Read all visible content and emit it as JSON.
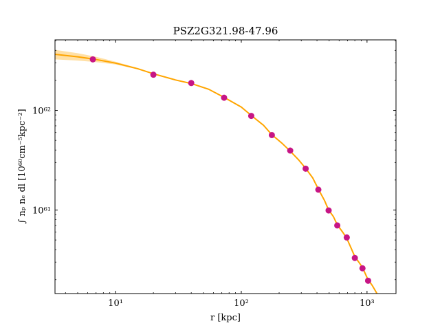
{
  "chart_data": {
    "type": "scatter",
    "title": "PSZ2G321.98-47.96",
    "xlabel": "r [kpc]",
    "ylabel": "∫ nₚ nₑ dl [10⁶⁰cm⁻⁵kpc⁻²]",
    "xscale": "log",
    "yscale": "log",
    "xlim": [
      3.3,
      1700
    ],
    "ylim": [
      1.45e+60,
      5.1e+62
    ],
    "x_ticks": [
      {
        "value": 10,
        "label": "10¹"
      },
      {
        "value": 100,
        "label": "10²"
      },
      {
        "value": 1000,
        "label": "10³"
      }
    ],
    "y_ticks": [
      {
        "value": 1e+61,
        "label": "10⁶¹"
      },
      {
        "value": 1e+62,
        "label": "10⁶²"
      }
    ],
    "grid": false,
    "legend": "none",
    "series": [
      {
        "kind": "points",
        "color": "#c71585",
        "x": [
          6.6,
          20,
          40,
          73,
          120,
          175,
          245,
          325,
          410,
          495,
          580,
          690,
          800,
          920,
          1020
        ],
        "y": [
          3.25e+62,
          2.28e+62,
          1.88e+62,
          1.34e+62,
          8.8e+61,
          5.65e+61,
          3.95e+61,
          2.6e+61,
          1.6e+61,
          9.9e+60,
          7e+60,
          5.3e+60,
          3.3e+60,
          2.6e+60,
          1.95e+60
        ]
      },
      {
        "kind": "model-line",
        "color": "#ffa500",
        "x": [
          3.3,
          5,
          7,
          10,
          15,
          20,
          30,
          40,
          55,
          73,
          100,
          120,
          150,
          175,
          210,
          245,
          285,
          325,
          370,
          410,
          460,
          495,
          540,
          580,
          640,
          690,
          750,
          800,
          860,
          920,
          1000,
          1020,
          1100,
          1200
        ],
        "y": [
          3.65e+62,
          3.45e+62,
          3.24e+62,
          2.98e+62,
          2.62e+62,
          2.33e+62,
          2.02e+62,
          1.86e+62,
          1.63e+62,
          1.35e+62,
          1.08e+62,
          8.9e+61,
          7.1e+61,
          5.7e+61,
          4.7e+61,
          3.9e+61,
          3.2e+61,
          2.62e+61,
          2.1e+61,
          1.62e+61,
          1.24e+61,
          1e+61,
          8.6e+60,
          7.1e+60,
          6e+60,
          5.2e+60,
          4.1e+60,
          3.4e+60,
          3e+60,
          2.65e+60,
          2.1e+60,
          2e+60,
          1.75e+60,
          1.45e+60
        ]
      },
      {
        "kind": "uncertainty-band",
        "color": "#ffa500",
        "x": [
          3.3,
          5,
          7,
          10,
          15,
          20,
          30
        ],
        "y_lower": [
          3.25e+62,
          3.16e+62,
          3.05e+62,
          2.89e+62,
          2.58e+62,
          2.31e+62,
          2.02e+62
        ],
        "y_upper": [
          4.05e+62,
          3.75e+62,
          3.45e+62,
          3.08e+62,
          2.66e+62,
          2.35e+62,
          2.02e+62
        ]
      }
    ]
  }
}
